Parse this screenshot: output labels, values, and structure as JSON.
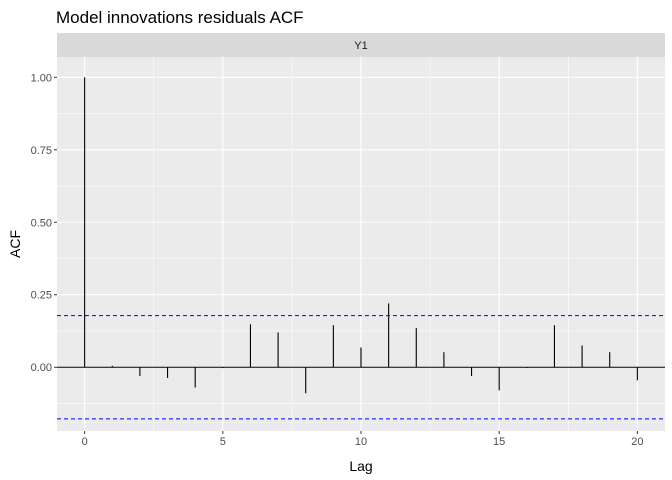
{
  "chart_data": {
    "type": "bar",
    "title": "Model innovations residuals ACF",
    "facet": "Y1",
    "xlabel": "Lag",
    "ylabel": "ACF",
    "xlim": [
      -1,
      21
    ],
    "ylim": [
      -0.22,
      1.07
    ],
    "x_ticks": [
      0,
      5,
      10,
      15,
      20
    ],
    "x_tick_labels": [
      "0",
      "5",
      "10",
      "15",
      "20"
    ],
    "y_ticks": [
      0,
      0.25,
      0.5,
      0.75,
      1.0
    ],
    "y_tick_labels": [
      "0.00",
      "0.25",
      "0.50",
      "0.75",
      "1.00"
    ],
    "grid": true,
    "confidence_bounds": [
      0.178,
      -0.178
    ],
    "colors": {
      "panel": "#ebebeb",
      "strip": "#d9d9d9",
      "grid": "#ffffff",
      "bar": "#000000",
      "bound": "#0000ff"
    },
    "x": [
      0,
      1,
      2,
      3,
      4,
      5,
      6,
      7,
      8,
      9,
      10,
      11,
      12,
      13,
      14,
      15,
      16,
      17,
      18,
      19,
      20
    ],
    "values": [
      1.0,
      0.005,
      -0.03,
      -0.037,
      -0.07,
      -0.003,
      0.148,
      0.12,
      -0.09,
      0.145,
      0.068,
      0.22,
      0.135,
      0.052,
      -0.03,
      -0.08,
      -0.003,
      0.145,
      0.075,
      0.052,
      -0.045
    ]
  }
}
